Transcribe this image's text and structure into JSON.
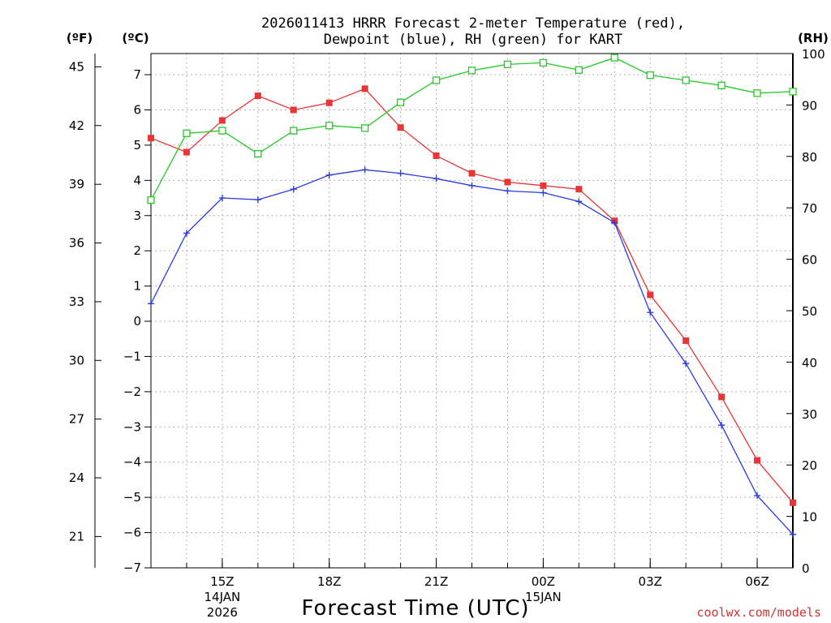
{
  "chart_data": {
    "type": "line",
    "title_line1": "2026011413 HRRR Forecast 2-meter Temperature (red),",
    "title_line2": "Dewpoint (blue), RH (green) for KART",
    "xlabel": "Forecast Time (UTC)",
    "credit": "coolwx.com/models",
    "units": {
      "left_f": "(ºF)",
      "left_c": "(ºC)",
      "right_rh": "(RH)"
    },
    "x_hours": [
      13,
      14,
      15,
      16,
      17,
      18,
      19,
      20,
      21,
      22,
      23,
      24,
      25,
      26,
      27,
      28,
      29,
      30,
      31
    ],
    "xlim": [
      13,
      31
    ],
    "x_ticks": [
      {
        "hour": 15,
        "label": "15Z",
        "date": "14JAN",
        "year": "2026"
      },
      {
        "hour": 18,
        "label": "18Z",
        "date": "",
        "year": ""
      },
      {
        "hour": 21,
        "label": "21Z",
        "date": "",
        "year": ""
      },
      {
        "hour": 24,
        "label": "00Z",
        "date": "15JAN",
        "year": ""
      },
      {
        "hour": 27,
        "label": "03Z",
        "date": "",
        "year": ""
      },
      {
        "hour": 30,
        "label": "06Z",
        "date": "",
        "year": ""
      }
    ],
    "celsius_axis": {
      "ylim": [
        -7,
        7.6
      ],
      "ticks": [
        -7,
        -6,
        -5,
        -4,
        -3,
        -2,
        -1,
        0,
        1,
        2,
        3,
        4,
        5,
        6,
        7
      ]
    },
    "fahrenheit_axis": {
      "ticks": [
        21,
        24,
        27,
        30,
        33,
        36,
        39,
        42,
        45
      ]
    },
    "rh_axis": {
      "ylim": [
        0,
        100
      ],
      "ticks": [
        0,
        10,
        20,
        30,
        40,
        50,
        60,
        70,
        80,
        90,
        100
      ]
    },
    "series": [
      {
        "name": "Temperature",
        "unit": "C",
        "color": "#e83535",
        "marker": "square-filled",
        "values": [
          5.2,
          4.8,
          5.7,
          6.4,
          6.0,
          6.2,
          6.6,
          5.5,
          4.7,
          4.2,
          3.95,
          3.85,
          3.75,
          2.85,
          0.75,
          -0.55,
          -2.15,
          -3.95,
          -5.15
        ]
      },
      {
        "name": "Dewpoint",
        "unit": "C",
        "color": "#2a3be0",
        "marker": "plus",
        "values": [
          0.5,
          2.5,
          3.5,
          3.45,
          3.75,
          4.15,
          4.3,
          4.2,
          4.05,
          3.85,
          3.7,
          3.65,
          3.4,
          2.8,
          0.25,
          -1.2,
          -2.95,
          -4.95,
          -6.05
        ]
      },
      {
        "name": "RH",
        "unit": "%",
        "color": "#22cc22",
        "marker": "square-open",
        "values": [
          71.5,
          84.5,
          85,
          80.5,
          85,
          86,
          85.5,
          90.5,
          94.8,
          96.7,
          97.9,
          98.2,
          96.8,
          99.2,
          95.8,
          94.8,
          93.8,
          92.3,
          92.6
        ]
      }
    ]
  }
}
